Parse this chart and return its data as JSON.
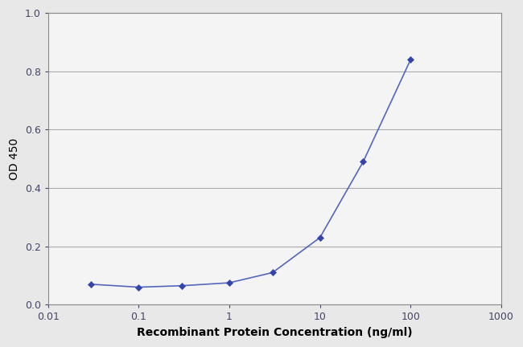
{
  "x_values": [
    0.03,
    0.1,
    0.3,
    1.0,
    3.0,
    10.0,
    30.0,
    100.0
  ],
  "y_values": [
    0.07,
    0.06,
    0.065,
    0.075,
    0.11,
    0.23,
    0.49,
    0.84
  ],
  "line_color": "#5566bb",
  "marker_color": "#3344aa",
  "marker": "D",
  "marker_size": 4,
  "line_width": 1.2,
  "xlabel": "Recombinant Protein Concentration (ng/ml)",
  "ylabel": "OD 450",
  "xlim": [
    0.01,
    1000
  ],
  "ylim": [
    0.0,
    1.0
  ],
  "yticks": [
    0.0,
    0.2,
    0.4,
    0.6,
    0.8,
    1.0
  ],
  "background_color": "#e8e8e8",
  "plot_bg_color": "#f4f4f4",
  "grid_color": "#aaaaaa",
  "xlabel_fontsize": 10,
  "ylabel_fontsize": 10,
  "tick_fontsize": 9,
  "tick_color": "#444466"
}
